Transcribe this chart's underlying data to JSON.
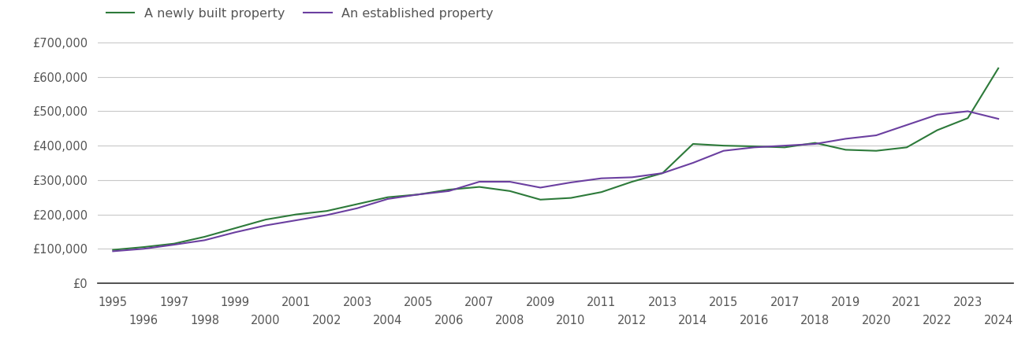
{
  "legend_new": "A newly built property",
  "legend_established": "An established property",
  "color_new": "#2d7a3a",
  "color_established": "#6b3fa0",
  "background_color": "#ffffff",
  "grid_color": "#c8c8c8",
  "years_new": [
    1995,
    1996,
    1997,
    1998,
    1999,
    2000,
    2001,
    2002,
    2003,
    2004,
    2005,
    2006,
    2007,
    2008,
    2009,
    2010,
    2011,
    2012,
    2013,
    2014,
    2015,
    2016,
    2017,
    2018,
    2019,
    2020,
    2021,
    2022,
    2023,
    2024
  ],
  "values_new": [
    97000,
    105000,
    115000,
    135000,
    160000,
    185000,
    200000,
    210000,
    230000,
    250000,
    258000,
    272000,
    280000,
    268000,
    243000,
    248000,
    265000,
    295000,
    320000,
    405000,
    400000,
    398000,
    395000,
    408000,
    388000,
    385000,
    395000,
    445000,
    480000,
    625000
  ],
  "years_established": [
    1995,
    1996,
    1997,
    1998,
    1999,
    2000,
    2001,
    2002,
    2003,
    2004,
    2005,
    2006,
    2007,
    2008,
    2009,
    2010,
    2011,
    2012,
    2013,
    2014,
    2015,
    2016,
    2017,
    2018,
    2019,
    2020,
    2021,
    2022,
    2023,
    2024
  ],
  "values_established": [
    93000,
    100000,
    112000,
    125000,
    148000,
    168000,
    183000,
    198000,
    218000,
    245000,
    258000,
    268000,
    295000,
    295000,
    278000,
    293000,
    305000,
    308000,
    320000,
    350000,
    385000,
    395000,
    400000,
    405000,
    420000,
    430000,
    460000,
    490000,
    500000,
    478000
  ],
  "ylim": [
    0,
    700000
  ],
  "yticks": [
    0,
    100000,
    200000,
    300000,
    400000,
    500000,
    600000,
    700000
  ],
  "xlim": [
    1994.5,
    2024.5
  ],
  "xticks_top": [
    1995,
    1997,
    1999,
    2001,
    2003,
    2005,
    2007,
    2009,
    2011,
    2013,
    2015,
    2017,
    2019,
    2021,
    2023
  ],
  "xticks_bottom": [
    1996,
    1998,
    2000,
    2002,
    2004,
    2006,
    2008,
    2010,
    2012,
    2014,
    2016,
    2018,
    2020,
    2022,
    2024
  ],
  "line_width": 1.5,
  "font_color": "#555555",
  "tick_fontsize": 10.5,
  "legend_fontsize": 11.5
}
